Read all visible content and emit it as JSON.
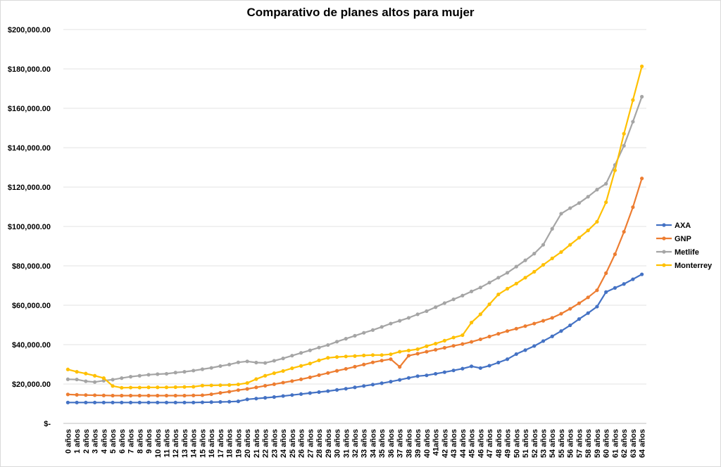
{
  "chart_data": {
    "type": "line",
    "title": "Comparativo de planes altos para mujer",
    "ylim": [
      0,
      200000
    ],
    "y_ticks": [
      {
        "value": 0,
        "label": "$-"
      },
      {
        "value": 20000,
        "label": "$20,000.00"
      },
      {
        "value": 40000,
        "label": "$40,000.00"
      },
      {
        "value": 60000,
        "label": "$60,000.00"
      },
      {
        "value": 80000,
        "label": "$80,000.00"
      },
      {
        "value": 100000,
        "label": "$100,000.00"
      },
      {
        "value": 120000,
        "label": "$120,000.00"
      },
      {
        "value": 140000,
        "label": "$140,000.00"
      },
      {
        "value": 160000,
        "label": "$160,000.00"
      },
      {
        "value": 180000,
        "label": "$180,000.00"
      },
      {
        "value": 200000,
        "label": "$200,000.00"
      }
    ],
    "grid": true,
    "legend_position": "right",
    "categories": [
      "0 años",
      "1 años",
      "2 años",
      "3 años",
      "4 años",
      "5 años",
      "6 años",
      "7 años",
      "8 años",
      "9 años",
      "10 años",
      "11 años",
      "12 años",
      "13 años",
      "14 años",
      "15 años",
      "16 años",
      "17 años",
      "18 años",
      "19 años",
      "20 años",
      "21 años",
      "22 años",
      "23 años",
      "24 años",
      "25 años",
      "26 años",
      "27 años",
      "28 años",
      "29 años",
      "30 años",
      "31 años",
      "32 años",
      "33 años",
      "34 años",
      "35 años",
      "36 años",
      "37 años",
      "38 años",
      "39 años",
      "40 años",
      "41años",
      "42 años",
      "43 años",
      "44 años",
      "45 años",
      "46 años",
      "47 años",
      "48 años",
      "49 años",
      "50 años",
      "51 años",
      "52 años",
      "53 años",
      "54 años",
      "55 años",
      "56 años",
      "57 años",
      "58 años",
      "59 años",
      "60 años",
      "61 años",
      "62 años",
      "63 años",
      "64 años"
    ],
    "series": [
      {
        "name": "AXA",
        "color": "#4472c4",
        "values": [
          10600,
          10600,
          10600,
          10600,
          10600,
          10600,
          10600,
          10600,
          10600,
          10600,
          10600,
          10600,
          10600,
          10600,
          10600,
          10700,
          10800,
          10900,
          11000,
          11200,
          12200,
          12600,
          13000,
          13400,
          13900,
          14400,
          14900,
          15400,
          15900,
          16400,
          17000,
          17600,
          18300,
          19000,
          19700,
          20400,
          21200,
          22100,
          23100,
          24000,
          24400,
          25200,
          26000,
          26900,
          27800,
          29000,
          28100,
          29300,
          30900,
          32600,
          35200,
          37200,
          39300,
          41800,
          44200,
          46900,
          49800,
          53000,
          56000,
          59300,
          66700,
          68800,
          70800,
          73200,
          75700
        ]
      },
      {
        "name": "GNP",
        "color": "#ed7d31",
        "values": [
          14700,
          14500,
          14400,
          14300,
          14200,
          14100,
          14100,
          14100,
          14100,
          14100,
          14100,
          14100,
          14100,
          14100,
          14200,
          14300,
          14800,
          15500,
          16100,
          16900,
          17500,
          18300,
          19100,
          19900,
          20700,
          21500,
          22400,
          23400,
          24500,
          25600,
          26700,
          27700,
          28800,
          29900,
          31000,
          31900,
          32600,
          28700,
          34400,
          35400,
          36400,
          37400,
          38400,
          39400,
          40300,
          41400,
          42700,
          44100,
          45500,
          46900,
          48100,
          49400,
          50700,
          52100,
          53600,
          55700,
          58200,
          61000,
          64000,
          67600,
          76300,
          85900,
          97300,
          109800,
          124400
        ]
      },
      {
        "name": "Metlife",
        "color": "#a5a5a5",
        "values": [
          22400,
          22300,
          21400,
          21000,
          21700,
          22200,
          23000,
          23700,
          24200,
          24700,
          25000,
          25200,
          25800,
          26200,
          26800,
          27500,
          28200,
          29100,
          29900,
          31000,
          31500,
          30900,
          30700,
          31800,
          33000,
          34400,
          35800,
          37100,
          38500,
          39800,
          41500,
          43000,
          44500,
          46000,
          47400,
          49000,
          50700,
          52100,
          53600,
          55400,
          57000,
          59000,
          61100,
          63000,
          64900,
          67000,
          69000,
          71500,
          74000,
          76500,
          79600,
          82800,
          86200,
          90700,
          98800,
          106500,
          109300,
          111900,
          115100,
          118700,
          121700,
          131200,
          141000,
          153200,
          165900
        ]
      },
      {
        "name": "Monterrey",
        "color": "#ffc000",
        "values": [
          27400,
          26200,
          25300,
          24200,
          23000,
          19000,
          18100,
          18200,
          18200,
          18300,
          18300,
          18300,
          18400,
          18500,
          18600,
          19200,
          19300,
          19400,
          19500,
          19800,
          20500,
          22500,
          24200,
          25500,
          26600,
          28000,
          29200,
          30400,
          32000,
          33300,
          33700,
          34000,
          34200,
          34500,
          34700,
          34700,
          35100,
          36400,
          37000,
          37700,
          39200,
          40500,
          42000,
          43600,
          44800,
          51200,
          55400,
          60500,
          65500,
          68400,
          71000,
          74000,
          77000,
          80500,
          83800,
          87000,
          90700,
          94300,
          98000,
          102400,
          112300,
          128500,
          147100,
          164200,
          181300
        ]
      }
    ]
  }
}
